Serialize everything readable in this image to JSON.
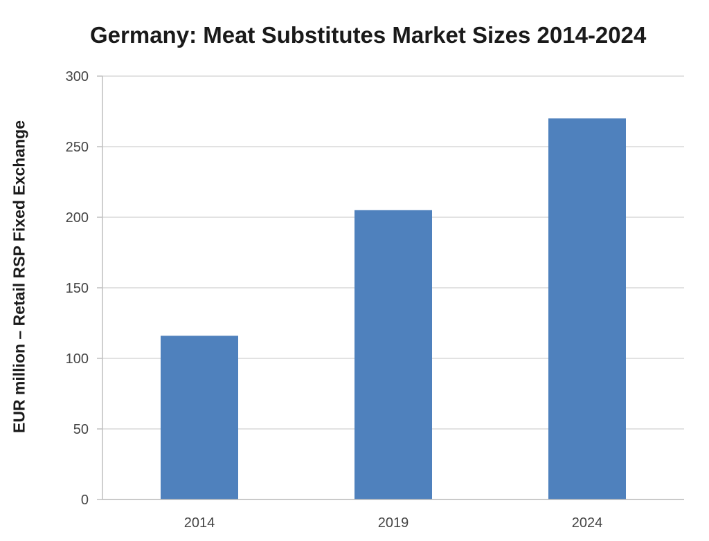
{
  "chart_data": {
    "type": "bar",
    "title": "Germany: Meat Substitutes Market Sizes 2014-2024",
    "xlabel": "",
    "ylabel": "EUR million – Retail RSP Fixed Exchange",
    "categories": [
      "2014",
      "2019",
      "2024"
    ],
    "values": [
      116,
      205,
      270
    ],
    "ylim": [
      0,
      300
    ],
    "yticks": [
      0,
      50,
      100,
      150,
      200,
      250,
      300
    ],
    "grid": true,
    "bar_color": "#4f81bd"
  }
}
